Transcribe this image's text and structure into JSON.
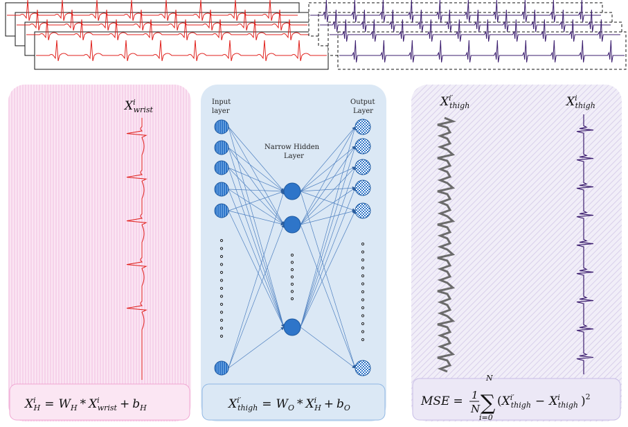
{
  "colors": {
    "wrist_signal": "#e0201c",
    "thigh_signal": "#3b1d6e",
    "reconstructed_signal": "#6b6b6b",
    "node_blue": "#2e75c9",
    "panel_left": "#f7dcef",
    "panel_mid": "#dbe8f5",
    "panel_right": "#e9e4f4"
  },
  "left_panel": {
    "signal_label": {
      "base": "X",
      "sup": "i",
      "sub": "wrist"
    },
    "equation": {
      "lhs_base": "X",
      "lhs_sup": "i",
      "lhs_sub": "H",
      "op_eq": "=",
      "w_base": "W",
      "w_sub": "H",
      "op_mul": "*",
      "x_base": "X",
      "x_sup": "i",
      "x_sub": "wrist",
      "op_plus": "+",
      "b_base": "b",
      "b_sub": "H"
    }
  },
  "middle_panel": {
    "input_label_line1": "Input",
    "input_label_line2": "layer",
    "output_label_line1": "Output",
    "output_label_line2": "Layer",
    "hidden_label_line1": "Narrow Hidden",
    "hidden_label_line2": "Layer",
    "equation": {
      "lhs_base": "X",
      "lhs_sup": "i′",
      "lhs_sub": "thigh",
      "op_eq": "=",
      "w_base": "W",
      "w_sub": "O",
      "op_mul": "*",
      "x_base": "X",
      "x_sup": "i",
      "x_sub": "H",
      "op_plus": "+",
      "b_base": "b",
      "b_sub": "O"
    }
  },
  "right_panel": {
    "recon_label": {
      "base": "X",
      "sup": "i′",
      "sub": "thigh"
    },
    "target_label": {
      "base": "X",
      "sup": "i",
      "sub": "thigh"
    },
    "equation": {
      "lhs": "MSE",
      "op_eq": "=",
      "frac_num": "1",
      "frac_den": "N",
      "sum_symbol": "∑",
      "sum_top": "N",
      "sum_bottom": "i=0",
      "open": "(",
      "t1_base": "X",
      "t1_sup": "i′",
      "t1_sub": "thigh",
      "op_minus": "−",
      "t2_base": "X",
      "t2_sup": "i",
      "t2_sub": "thigh",
      "close": ")",
      "power": "2"
    }
  }
}
